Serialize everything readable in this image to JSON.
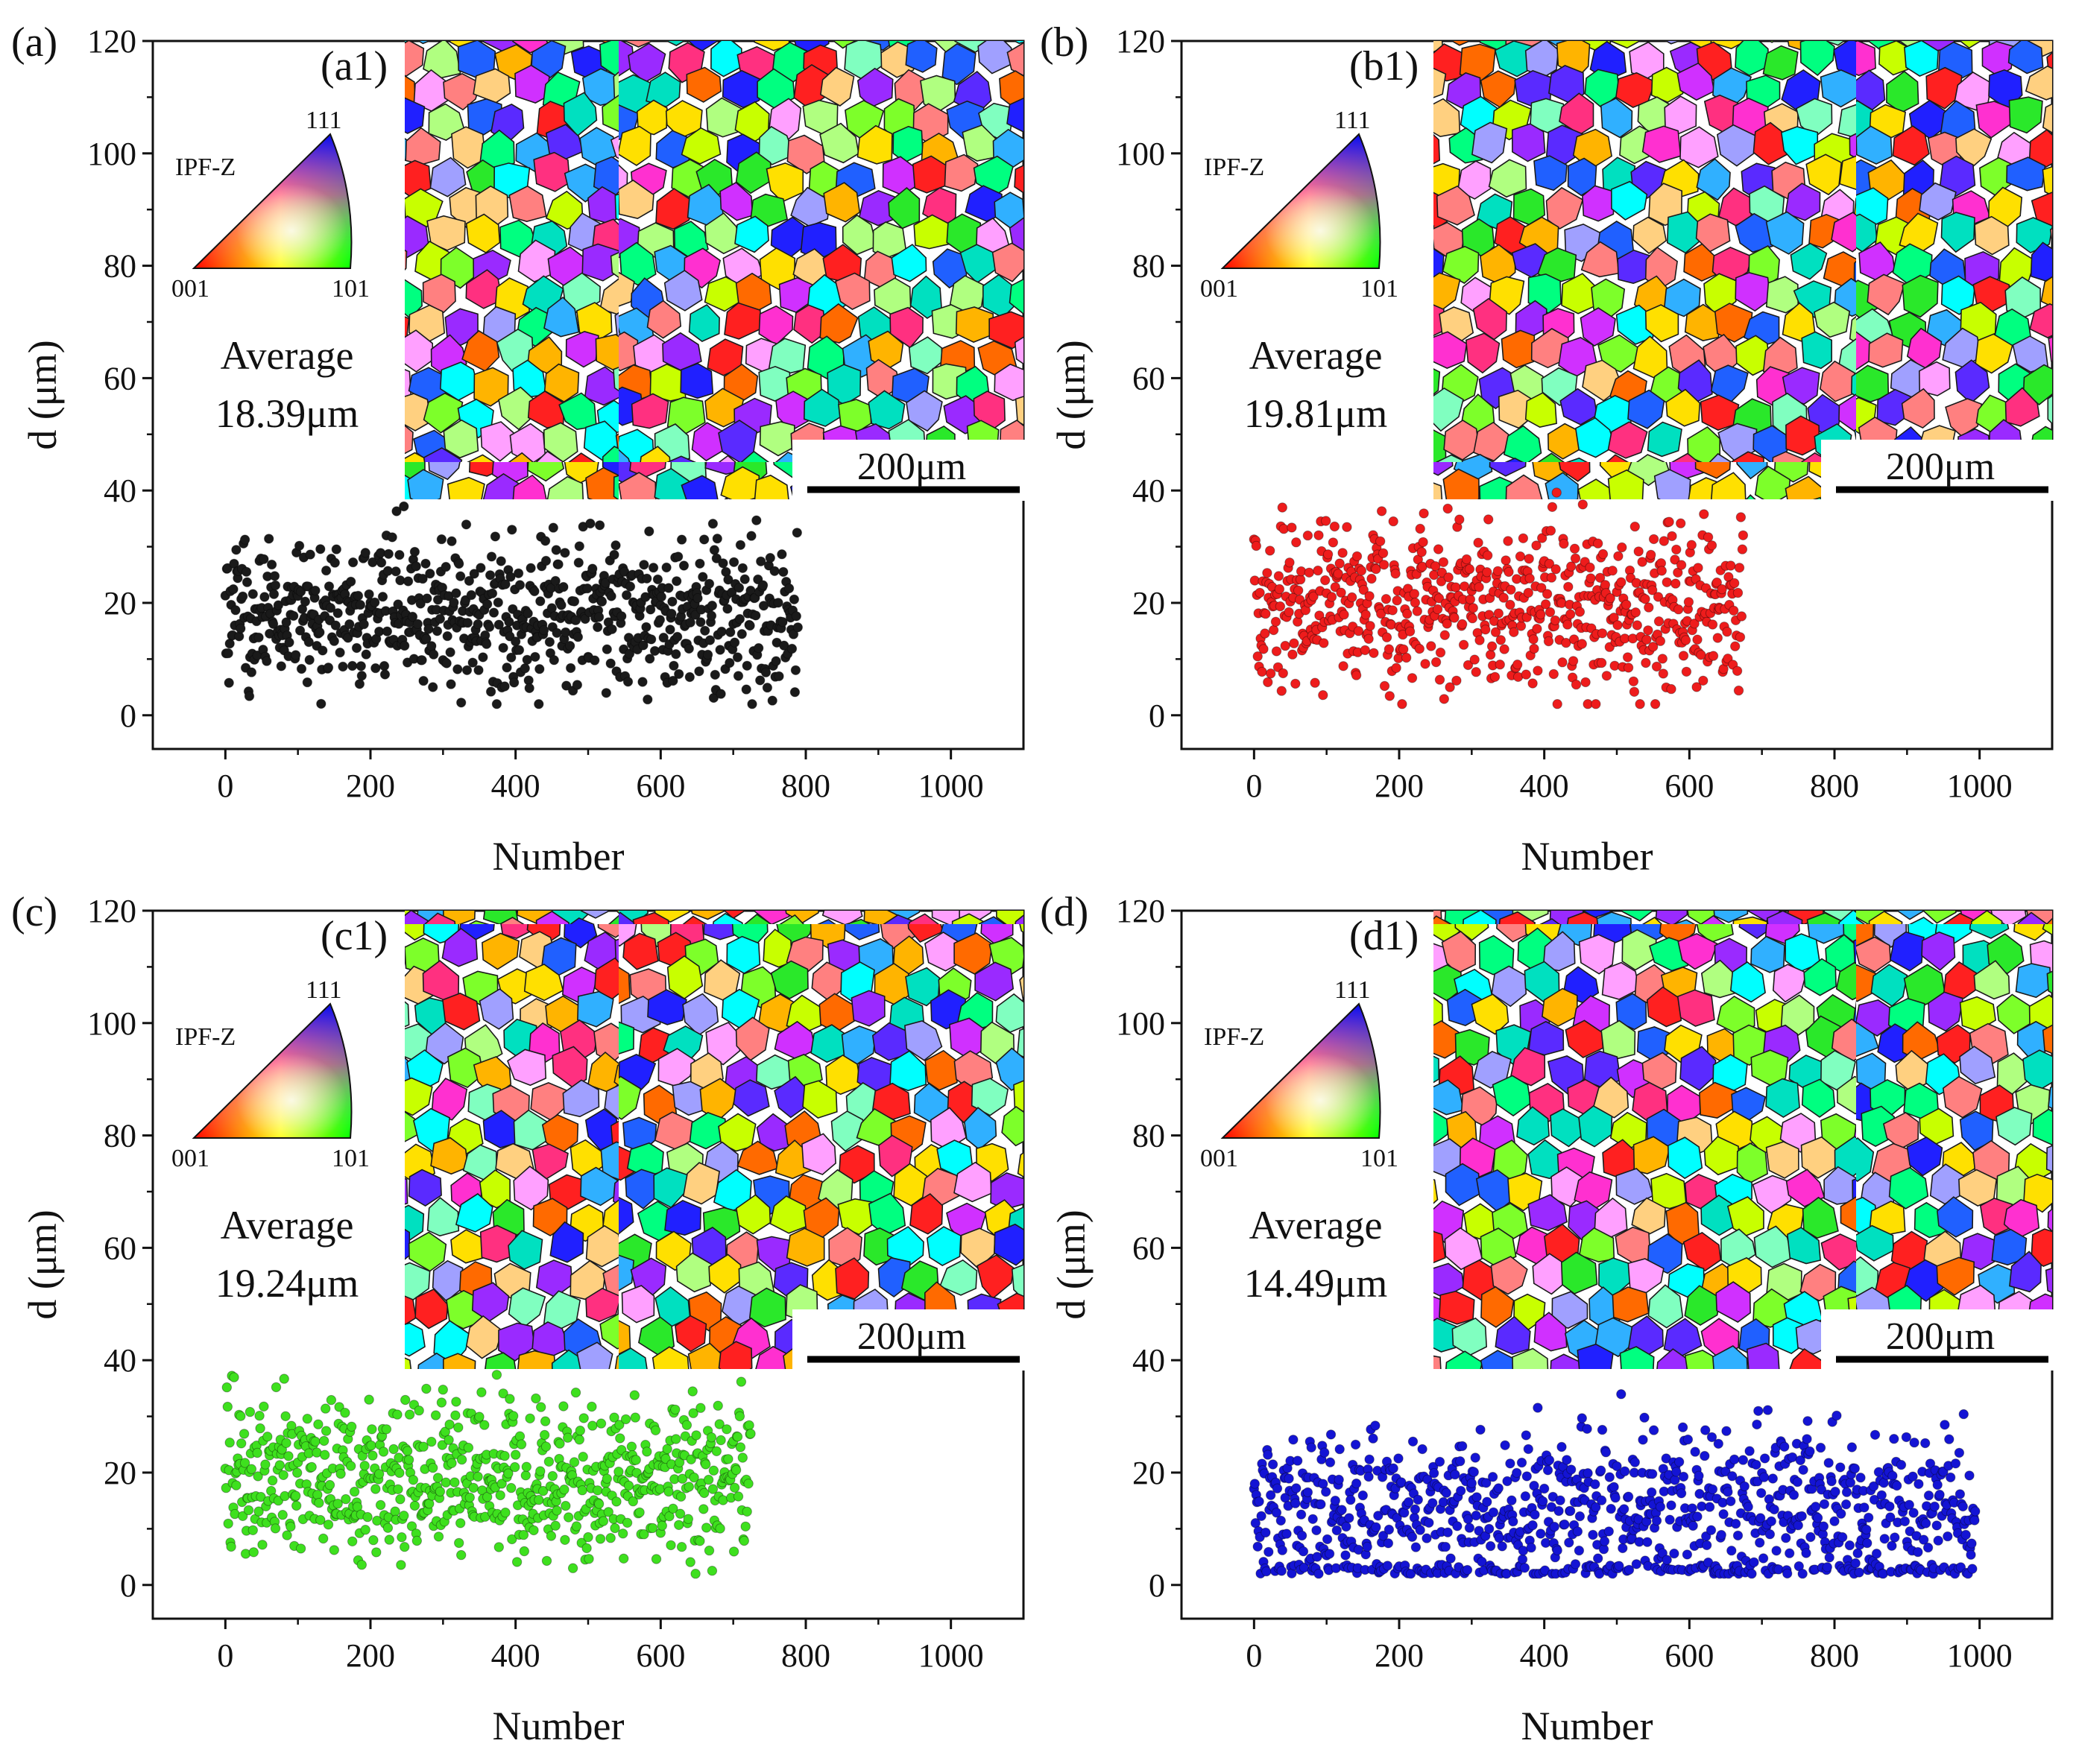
{
  "figure": {
    "xlabel": "Number",
    "ylabel": "d (μm)",
    "x_ticks": [
      "0",
      "200",
      "400",
      "600",
      "800",
      "1000"
    ],
    "y_ticks": [
      "0",
      "20",
      "40",
      "60",
      "80",
      "100",
      "120"
    ],
    "inset_legend_title": "IPF-Z",
    "legend_corner_001": "001",
    "legend_corner_101": "101",
    "legend_corner_111": "111",
    "average_label": "Average",
    "scale_bar_label": "200μm"
  },
  "chart_data": [
    {
      "type": "scatter",
      "panel_label": "(a)",
      "inset_label": "(a1)",
      "average_value": "18.39μm",
      "color": "#1a1a1a",
      "xlim": [
        -100,
        1100
      ],
      "ylim": [
        -6,
        120
      ],
      "n_points": 790,
      "max_d": 38.5,
      "min_d": 2,
      "mean_d": 18.39,
      "xlabel": "Number",
      "ylabel": "d (μm)"
    },
    {
      "type": "scatter",
      "panel_label": "(b)",
      "inset_label": "(b1)",
      "average_value": "19.81μm",
      "color": "#ee1c1c",
      "xlim": [
        -100,
        1100
      ],
      "ylim": [
        -6,
        120
      ],
      "n_points": 675,
      "max_d": 42,
      "min_d": 2,
      "mean_d": 19.81,
      "xlabel": "Number",
      "ylabel": "d (μm)"
    },
    {
      "type": "scatter",
      "panel_label": "(c)",
      "inset_label": "(c1)",
      "average_value": "19.24μm",
      "color": "#3ee01e",
      "xlim": [
        -100,
        1100
      ],
      "ylim": [
        -6,
        120
      ],
      "n_points": 725,
      "max_d": 40,
      "min_d": 2,
      "mean_d": 19.24,
      "xlabel": "Number",
      "ylabel": "d (μm)"
    },
    {
      "type": "scatter",
      "panel_label": "(d)",
      "inset_label": "(d1)",
      "average_value": "14.49μm",
      "color": "#1414d4",
      "xlim": [
        -100,
        1100
      ],
      "ylim": [
        -6,
        120
      ],
      "n_points": 995,
      "max_d": 39,
      "min_d": 2,
      "mean_d": 14.49,
      "xlabel": "Number",
      "ylabel": "d (μm)"
    }
  ]
}
